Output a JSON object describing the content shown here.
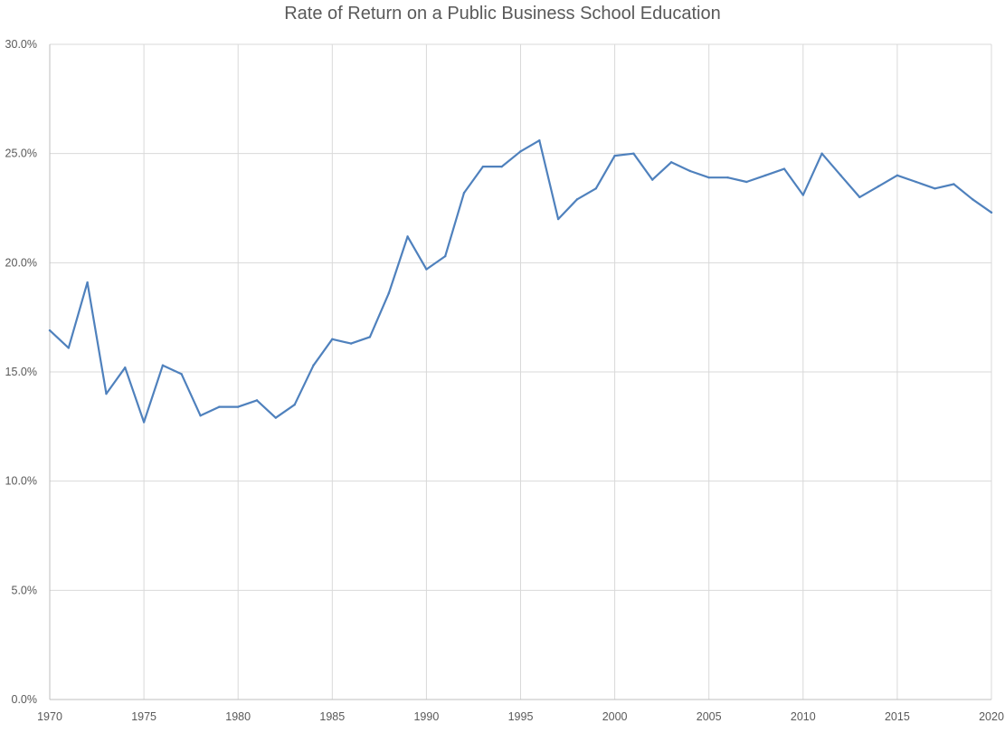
{
  "chart_data": {
    "type": "line",
    "title": "Rate of Return on a Public Business School Education",
    "xlabel": "",
    "ylabel": "",
    "xlim": [
      1970,
      2020
    ],
    "ylim": [
      0,
      30
    ],
    "x_ticks": [
      1970,
      1975,
      1980,
      1985,
      1990,
      1995,
      2000,
      2005,
      2010,
      2015,
      2020
    ],
    "y_ticks": [
      "0.0%",
      "5.0%",
      "10.0%",
      "15.0%",
      "20.0%",
      "25.0%",
      "30.0%"
    ],
    "y_tick_values": [
      0,
      5,
      10,
      15,
      20,
      25,
      30
    ],
    "grid": true,
    "legend": "none",
    "line_color": "#4f81bd",
    "series": [
      {
        "x": [
          1970,
          1971,
          1972,
          1973,
          1974,
          1975,
          1976,
          1977,
          1978,
          1979,
          1980,
          1981,
          1982,
          1983,
          1984,
          1985,
          1986,
          1987,
          1988,
          1989,
          1990,
          1991,
          1992,
          1993,
          1994,
          1995,
          1996,
          1997,
          1998,
          1999,
          2000,
          2001,
          2002,
          2003,
          2004,
          2005,
          2006,
          2007,
          2008,
          2009,
          2010,
          2011,
          2012,
          2013,
          2014,
          2015,
          2016,
          2017,
          2018,
          2019,
          2020
        ],
        "values": [
          16.9,
          16.1,
          19.1,
          14.0,
          15.2,
          12.7,
          15.3,
          14.9,
          13.0,
          13.4,
          13.4,
          13.7,
          12.9,
          13.5,
          15.3,
          16.5,
          16.3,
          16.6,
          18.6,
          21.2,
          19.7,
          20.3,
          23.2,
          24.4,
          24.4,
          25.1,
          25.6,
          22.0,
          22.9,
          23.4,
          24.9,
          25.0,
          23.8,
          24.6,
          24.2,
          23.9,
          23.9,
          23.7,
          24.0,
          24.3,
          23.1,
          25.0,
          24.0,
          23.0,
          23.5,
          24.0,
          23.7,
          23.4,
          23.6,
          22.9,
          22.3
        ]
      }
    ]
  }
}
